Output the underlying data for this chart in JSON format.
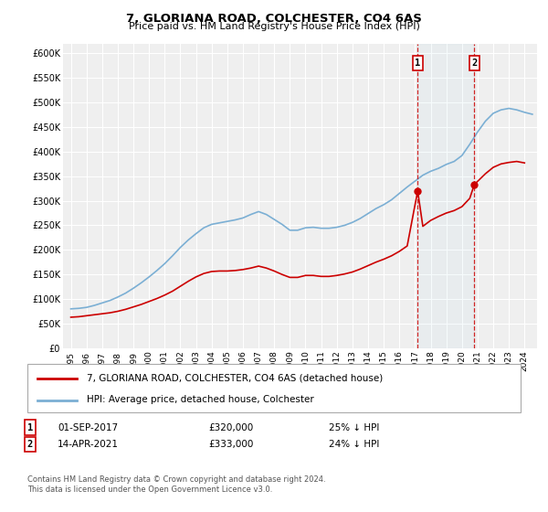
{
  "title": "7, GLORIANA ROAD, COLCHESTER, CO4 6AS",
  "subtitle": "Price paid vs. HM Land Registry's House Price Index (HPI)",
  "ylim": [
    0,
    620000
  ],
  "yticks": [
    0,
    50000,
    100000,
    150000,
    200000,
    250000,
    300000,
    350000,
    400000,
    450000,
    500000,
    550000,
    600000
  ],
  "ytick_labels": [
    "£0",
    "£50K",
    "£100K",
    "£150K",
    "£200K",
    "£250K",
    "£300K",
    "£350K",
    "£400K",
    "£450K",
    "£500K",
    "£550K",
    "£600K"
  ],
  "background_color": "#ffffff",
  "plot_bg_color": "#efefef",
  "grid_color": "#ffffff",
  "hpi_color": "#7bafd4",
  "price_color": "#cc0000",
  "vline_color": "#cc0000",
  "transaction1": {
    "date_num": 2017.67,
    "price": 320000,
    "label": "1",
    "text": "01-SEP-2017",
    "amount": "£320,000",
    "pct": "25% ↓ HPI"
  },
  "transaction2": {
    "date_num": 2021.29,
    "price": 333000,
    "label": "2",
    "text": "14-APR-2021",
    "amount": "£333,000",
    "pct": "24% ↓ HPI"
  },
  "legend_line1": "7, GLORIANA ROAD, COLCHESTER, CO4 6AS (detached house)",
  "legend_line2": "HPI: Average price, detached house, Colchester",
  "footnote": "Contains HM Land Registry data © Crown copyright and database right 2024.\nThis data is licensed under the Open Government Licence v3.0.",
  "hpi_x": [
    1995.5,
    1996.0,
    1996.5,
    1997.0,
    1997.5,
    1998.0,
    1998.5,
    1999.0,
    1999.5,
    2000.0,
    2000.5,
    2001.0,
    2001.5,
    2002.0,
    2002.5,
    2003.0,
    2003.5,
    2004.0,
    2004.5,
    2005.0,
    2005.5,
    2006.0,
    2006.5,
    2007.0,
    2007.5,
    2008.0,
    2008.5,
    2009.0,
    2009.5,
    2010.0,
    2010.5,
    2011.0,
    2011.5,
    2012.0,
    2012.5,
    2013.0,
    2013.5,
    2014.0,
    2014.5,
    2015.0,
    2015.5,
    2016.0,
    2016.5,
    2017.0,
    2017.5,
    2018.0,
    2018.5,
    2019.0,
    2019.5,
    2020.0,
    2020.5,
    2021.0,
    2021.5,
    2022.0,
    2022.5,
    2023.0,
    2023.5,
    2024.0,
    2024.5,
    2025.0
  ],
  "hpi_y": [
    80000,
    81000,
    83000,
    87000,
    92000,
    97000,
    104000,
    112000,
    122000,
    133000,
    145000,
    158000,
    172000,
    188000,
    205000,
    220000,
    233000,
    245000,
    252000,
    255000,
    258000,
    261000,
    265000,
    272000,
    278000,
    272000,
    262000,
    252000,
    240000,
    240000,
    245000,
    246000,
    244000,
    244000,
    246000,
    250000,
    256000,
    264000,
    274000,
    284000,
    292000,
    302000,
    315000,
    328000,
    340000,
    352000,
    360000,
    366000,
    374000,
    380000,
    392000,
    415000,
    440000,
    462000,
    478000,
    485000,
    488000,
    485000,
    480000,
    476000
  ],
  "price_x": [
    1995.5,
    1996.0,
    1996.5,
    1997.0,
    1997.5,
    1998.0,
    1998.5,
    1999.0,
    1999.5,
    2000.0,
    2000.5,
    2001.0,
    2001.5,
    2002.0,
    2002.5,
    2003.0,
    2003.5,
    2004.0,
    2004.5,
    2005.0,
    2005.5,
    2006.0,
    2006.5,
    2007.0,
    2007.5,
    2008.0,
    2008.5,
    2009.0,
    2009.5,
    2010.0,
    2010.5,
    2011.0,
    2011.5,
    2012.0,
    2012.5,
    2013.0,
    2013.5,
    2014.0,
    2014.5,
    2015.0,
    2015.5,
    2016.0,
    2016.5,
    2017.0,
    2017.67,
    2018.0,
    2018.5,
    2019.0,
    2019.5,
    2020.0,
    2020.5,
    2021.0,
    2021.29,
    2022.0,
    2022.5,
    2023.0,
    2023.5,
    2024.0,
    2024.5
  ],
  "price_y": [
    63000,
    64000,
    66000,
    68000,
    70000,
    72000,
    75000,
    79000,
    84000,
    89000,
    95000,
    101000,
    108000,
    116000,
    126000,
    136000,
    145000,
    152000,
    156000,
    157000,
    157000,
    158000,
    160000,
    163000,
    167000,
    163000,
    157000,
    150000,
    144000,
    144000,
    148000,
    148000,
    146000,
    146000,
    148000,
    151000,
    155000,
    161000,
    168000,
    175000,
    181000,
    188000,
    197000,
    208000,
    320000,
    248000,
    260000,
    268000,
    275000,
    280000,
    288000,
    305000,
    333000,
    355000,
    368000,
    375000,
    378000,
    380000,
    377000
  ]
}
